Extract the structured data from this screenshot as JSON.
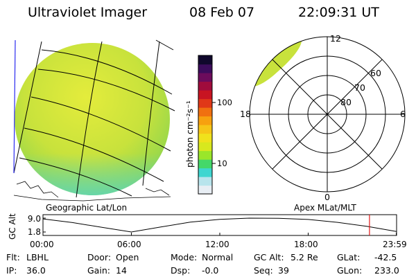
{
  "header": {
    "instrument": "Ultraviolet Imager",
    "date": "08 Feb 07",
    "time": "22:09:31 UT"
  },
  "colorbar": {
    "unit_label": "photon cm⁻²s⁻¹",
    "tick_100": "100",
    "tick_10": "10",
    "colors": [
      "#e8eef4",
      "#b8e4ec",
      "#3ed6d0",
      "#44d86a",
      "#9ae62a",
      "#d8e81e",
      "#f0e21c",
      "#f6c618",
      "#f7a10f",
      "#f07010",
      "#e03818",
      "#c81422",
      "#a00c3c",
      "#6c0c5c",
      "#3c0c5c",
      "#10082c"
    ]
  },
  "left_panel": {
    "label": "Geographic Lat/Lon",
    "fill_color": "#c8e23c"
  },
  "polar_panel": {
    "label": "Apex MLat/MLT",
    "mlt_top": "12",
    "mlt_bottom": "0",
    "mlt_left": "18",
    "mlt_right": "6",
    "lat_60": "60",
    "lat_70": "70",
    "lat_80": "80"
  },
  "altitude_plot": {
    "ylabel": "GC Alt",
    "ytick_top": "9.0",
    "ytick_bottom": "1.8",
    "xticks": [
      "00:00",
      "06:00",
      "12:00",
      "18:00",
      "23:59"
    ],
    "marker_color": "#e01818"
  },
  "chart_data": {
    "type": "line",
    "x_unit": "hour UT",
    "ylabel": "GC Alt",
    "ylim": [
      1.8,
      9.0
    ],
    "xlim": [
      0,
      24
    ],
    "x": [
      0,
      2,
      4,
      6,
      8,
      10,
      12,
      14,
      16,
      18,
      20,
      22,
      23.98
    ],
    "values": [
      8.6,
      6.7,
      4.2,
      1.8,
      4.4,
      6.9,
      8.4,
      9.0,
      8.9,
      8.3,
      6.8,
      4.7,
      2.1
    ],
    "marker_x": 22.16
  },
  "status": {
    "flt_label": "Flt:",
    "flt_value": "LBHL",
    "ip_label": "IP:",
    "ip_value": "36.0",
    "door_label": "Door:",
    "door_value": "Open",
    "gain_label": "Gain:",
    "gain_value": "14",
    "mode_label": "Mode:",
    "mode_value": "Normal",
    "dsp_label": "Dsp:",
    "dsp_value": "-0.0",
    "gcalt_label": "GC Alt:",
    "gcalt_value": "5.2 Re",
    "seq_label": "Seq:",
    "seq_value": "39",
    "glat_label": "GLat:",
    "glat_value": "-42.5",
    "glon_label": "GLon:",
    "glon_value": "233.0"
  }
}
